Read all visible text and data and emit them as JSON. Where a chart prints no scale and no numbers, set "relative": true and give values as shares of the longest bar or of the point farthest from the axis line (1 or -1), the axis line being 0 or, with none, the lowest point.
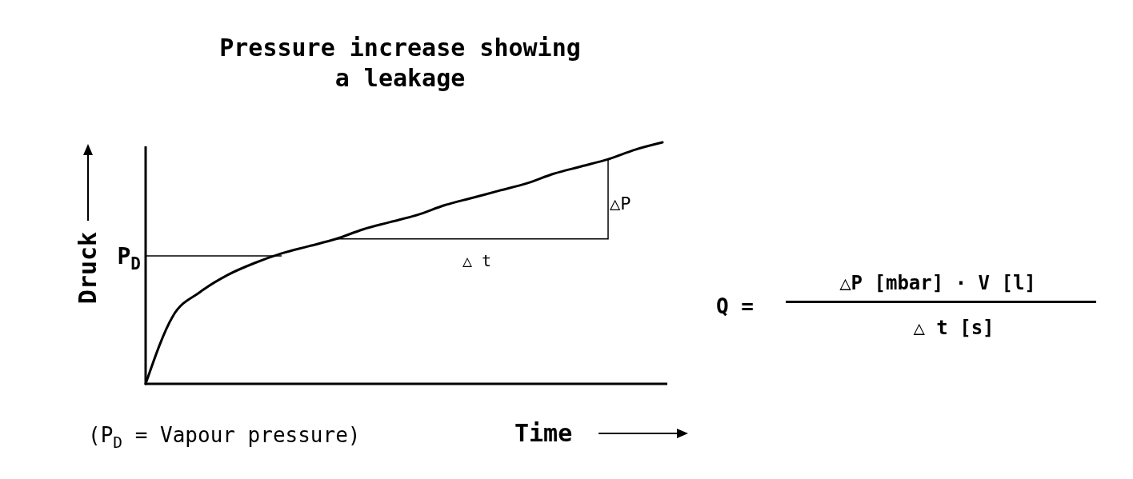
{
  "chart_data": {
    "type": "line",
    "title": "Pressure increase showing\na leakage",
    "xlabel": "Time",
    "ylabel": "Druck",
    "relative": true,
    "categories": [
      null,
      null,
      null,
      null,
      null,
      null,
      null,
      null,
      null,
      null,
      null,
      null,
      null,
      null,
      null,
      null,
      null,
      null,
      null,
      null
    ],
    "series": [
      {
        "color": "#000000",
        "values": [
          0,
          0.28,
          0.38,
          0.45,
          0.5,
          0.54,
          0.57,
          0.6,
          0.64,
          0.67,
          0.7,
          0.74,
          0.77,
          0.8,
          0.83,
          0.87,
          0.9,
          0.93,
          0.97,
          1
        ]
      },
      {
        "type": "step",
        "color": "#000000",
        "values": [
          null,
          null,
          null,
          null,
          null,
          null,
          null,
          0.6,
          0.6,
          0.6,
          0.6,
          0.6,
          0.6,
          0.6,
          0.6,
          0.6,
          0.6,
          0.93,
          null,
          null
        ]
      }
    ],
    "ref_lines": [
      {
        "axis": "y",
        "value": 0.53,
        "label": "P$_{D}$",
        "color": "#000000"
      }
    ],
    "annotations": [
      "(P$_{D}$ = Vapour pressure)",
      "△P",
      "△ t",
      "Q =",
      "△P [mbar] · V [l]",
      "△ t [s]"
    ],
    "marker": "none",
    "line_style": "solid"
  }
}
